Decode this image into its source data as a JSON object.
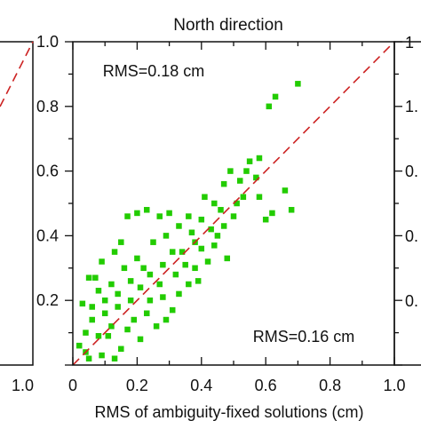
{
  "chart_data": {
    "type": "scatter",
    "title": "North direction",
    "xlabel": "RMS of ambiguity-fixed solutions (cm)",
    "ylabel": "",
    "xlim": [
      0,
      1.0
    ],
    "ylim": [
      0,
      1.0
    ],
    "x_ticks": [
      "0",
      "0.2",
      "0.4",
      "0.6",
      "0.8",
      "1.0"
    ],
    "y_ticks": [
      "0.2",
      "0.4",
      "0.6",
      "0.8",
      "1.0"
    ],
    "annotations": [
      "RMS=0.18 cm",
      "RMS=0.16 cm"
    ],
    "reference_line": {
      "from": [
        0,
        0
      ],
      "to": [
        1.0,
        1.0
      ],
      "style": "dashed",
      "color": "#cc2222"
    },
    "marker_color": "#22cc00",
    "series": [
      {
        "values": [
          [
            0.7,
            0.87
          ],
          [
            0.63,
            0.83
          ],
          [
            0.61,
            0.8
          ],
          [
            0.66,
            0.54
          ],
          [
            0.58,
            0.64
          ],
          [
            0.55,
            0.63
          ],
          [
            0.57,
            0.58
          ],
          [
            0.54,
            0.6
          ],
          [
            0.68,
            0.48
          ],
          [
            0.6,
            0.45
          ],
          [
            0.52,
            0.57
          ],
          [
            0.49,
            0.6
          ],
          [
            0.47,
            0.56
          ],
          [
            0.53,
            0.52
          ],
          [
            0.58,
            0.52
          ],
          [
            0.62,
            0.47
          ],
          [
            0.5,
            0.46
          ],
          [
            0.47,
            0.43
          ],
          [
            0.44,
            0.5
          ],
          [
            0.41,
            0.52
          ],
          [
            0.45,
            0.4
          ],
          [
            0.4,
            0.45
          ],
          [
            0.44,
            0.37
          ],
          [
            0.48,
            0.33
          ],
          [
            0.42,
            0.32
          ],
          [
            0.38,
            0.38
          ],
          [
            0.36,
            0.46
          ],
          [
            0.33,
            0.43
          ],
          [
            0.3,
            0.47
          ],
          [
            0.27,
            0.46
          ],
          [
            0.23,
            0.48
          ],
          [
            0.2,
            0.47
          ],
          [
            0.17,
            0.46
          ],
          [
            0.15,
            0.38
          ],
          [
            0.13,
            0.35
          ],
          [
            0.09,
            0.32
          ],
          [
            0.07,
            0.27
          ],
          [
            0.05,
            0.27
          ],
          [
            0.08,
            0.23
          ],
          [
            0.12,
            0.25
          ],
          [
            0.16,
            0.3
          ],
          [
            0.2,
            0.33
          ],
          [
            0.25,
            0.38
          ],
          [
            0.29,
            0.4
          ],
          [
            0.34,
            0.35
          ],
          [
            0.38,
            0.3
          ],
          [
            0.36,
            0.25
          ],
          [
            0.32,
            0.28
          ],
          [
            0.28,
            0.31
          ],
          [
            0.24,
            0.28
          ],
          [
            0.21,
            0.24
          ],
          [
            0.18,
            0.2
          ],
          [
            0.14,
            0.18
          ],
          [
            0.1,
            0.16
          ],
          [
            0.06,
            0.14
          ],
          [
            0.04,
            0.1
          ],
          [
            0.02,
            0.06
          ],
          [
            0.03,
            0.19
          ],
          [
            0.11,
            0.09
          ],
          [
            0.17,
            0.11
          ],
          [
            0.23,
            0.16
          ],
          [
            0.28,
            0.21
          ],
          [
            0.33,
            0.22
          ],
          [
            0.31,
            0.17
          ],
          [
            0.26,
            0.12
          ],
          [
            0.21,
            0.08
          ],
          [
            0.15,
            0.05
          ],
          [
            0.09,
            0.03
          ],
          [
            0.05,
            0.02
          ],
          [
            0.19,
            0.14
          ],
          [
            0.24,
            0.2
          ],
          [
            0.12,
            0.12
          ],
          [
            0.08,
            0.09
          ],
          [
            0.27,
            0.25
          ],
          [
            0.35,
            0.31
          ],
          [
            0.4,
            0.36
          ],
          [
            0.43,
            0.42
          ],
          [
            0.46,
            0.48
          ],
          [
            0.51,
            0.5
          ],
          [
            0.37,
            0.41
          ],
          [
            0.31,
            0.35
          ],
          [
            0.22,
            0.3
          ],
          [
            0.18,
            0.26
          ],
          [
            0.14,
            0.22
          ],
          [
            0.1,
            0.2
          ],
          [
            0.06,
            0.18
          ],
          [
            0.04,
            0.04
          ],
          [
            0.13,
            0.02
          ],
          [
            0.29,
            0.14
          ],
          [
            0.39,
            0.26
          ]
        ]
      }
    ]
  },
  "partial_left_panel": {
    "tick_label": "1.0"
  },
  "partial_right_panel": {
    "tick_labels": [
      "1",
      "1.",
      "0.",
      "0.",
      "0."
    ]
  }
}
